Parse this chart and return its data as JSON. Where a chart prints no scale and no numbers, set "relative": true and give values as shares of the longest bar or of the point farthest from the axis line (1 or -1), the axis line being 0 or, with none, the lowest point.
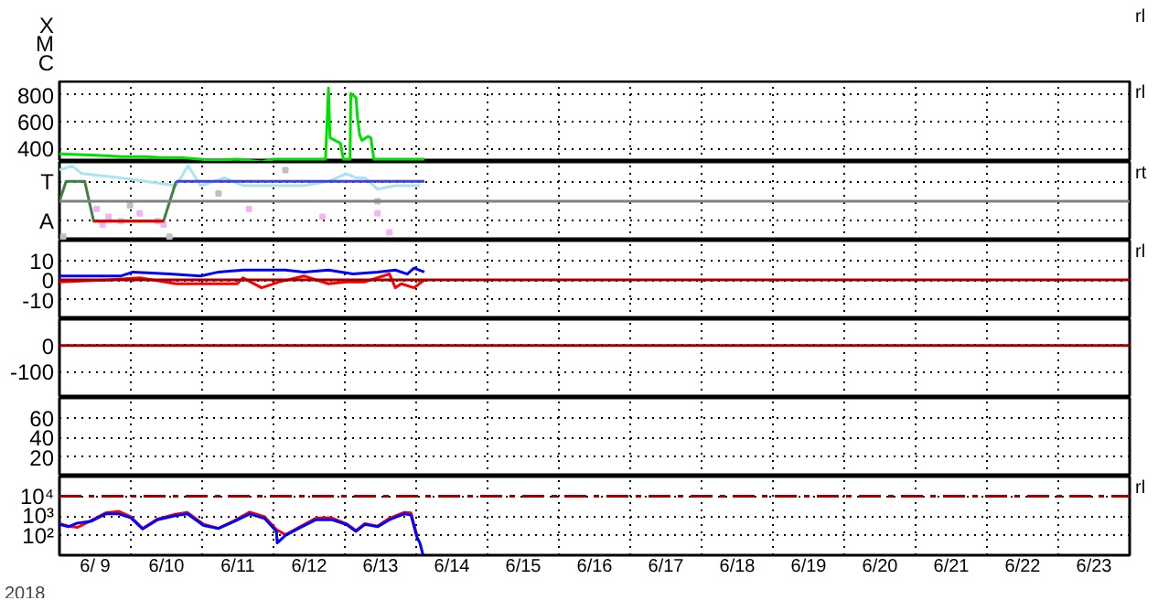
{
  "chart_data": [
    {
      "type": "other",
      "y_categories": [
        "X",
        "M",
        "C"
      ],
      "annotations": [
        "rl"
      ]
    },
    {
      "type": "line",
      "xlim": [
        "2018-06-09",
        "2018-06-24"
      ],
      "ylim": [
        300,
        900
      ],
      "yticks": [
        400,
        600,
        800
      ],
      "xticks": [
        {
          "value": "2018-06-10",
          "label": null
        },
        {
          "value": "2018-06-11",
          "label": null
        },
        {
          "value": "2018-06-12",
          "label": null
        },
        {
          "value": "2018-06-13",
          "label": null
        },
        {
          "value": "2018-06-14",
          "label": null
        },
        {
          "value": "2018-06-15",
          "label": null
        },
        {
          "value": "2018-06-16",
          "label": null
        },
        {
          "value": "2018-06-17",
          "label": null
        },
        {
          "value": "2018-06-18",
          "label": null
        },
        {
          "value": "2018-06-19",
          "label": null
        },
        {
          "value": "2018-06-20",
          "label": null
        },
        {
          "value": "2018-06-21",
          "label": null
        },
        {
          "value": "2018-06-22",
          "label": null
        },
        {
          "value": "2018-06-23",
          "label": null
        }
      ],
      "grid": true,
      "tick_labels": "y",
      "annotations": [
        "rl"
      ],
      "series": [
        {
          "color": "#00e000",
          "x": [
            "2018-06-09T00:00",
            "2018-06-09T12:30",
            "2018-06-09T20:45",
            "2018-06-10T05:00",
            "2018-06-10T11:00",
            "2018-06-10T17:15",
            "2018-06-10T23:30",
            "2018-06-11T02:30",
            "2018-06-11T11:45",
            "2018-06-11T20:00",
            "2018-06-12T00:00",
            "2018-06-12T14:15",
            "2018-06-12T17:30",
            "2018-06-12T18:30",
            "2018-06-12T19:00",
            "2018-06-12T22:30",
            "2018-06-12T23:30",
            "2018-06-13T01:45",
            "2018-06-13T02:00",
            "2018-06-13T03:45",
            "2018-06-13T04:15",
            "2018-06-13T05:00",
            "2018-06-13T05:45",
            "2018-06-13T07:45",
            "2018-06-13T08:45",
            "2018-06-13T09:45",
            "2018-06-14T02:45"
          ],
          "values": [
            360,
            350,
            340,
            340,
            330,
            330,
            320,
            310,
            320,
            300,
            320,
            320,
            320,
            850,
            480,
            440,
            320,
            320,
            810,
            780,
            630,
            500,
            460,
            490,
            480,
            320,
            320
          ]
        }
      ]
    },
    {
      "type": "line",
      "relative": true,
      "xlim": [
        "2018-06-09",
        "2018-06-24"
      ],
      "y_categories": [
        "T",
        "A"
      ],
      "xticks": [
        {
          "value": "2018-06-10",
          "label": null
        },
        {
          "value": "2018-06-11",
          "label": null
        },
        {
          "value": "2018-06-12",
          "label": null
        },
        {
          "value": "2018-06-13",
          "label": null
        },
        {
          "value": "2018-06-14",
          "label": null
        },
        {
          "value": "2018-06-15",
          "label": null
        },
        {
          "value": "2018-06-16",
          "label": null
        },
        {
          "value": "2018-06-17",
          "label": null
        },
        {
          "value": "2018-06-18",
          "label": null
        },
        {
          "value": "2018-06-19",
          "label": null
        },
        {
          "value": "2018-06-20",
          "label": null
        },
        {
          "value": "2018-06-21",
          "label": null
        },
        {
          "value": "2018-06-22",
          "label": null
        },
        {
          "value": "2018-06-23",
          "label": null
        }
      ],
      "grid": true,
      "tick_labels": "y",
      "annotations": [
        "rt"
      ],
      "ref_lines": [
        {
          "axis": "y",
          "value": 0.5,
          "color": "#808080"
        }
      ],
      "series": [
        {
          "color": "#a8e4f4",
          "x": [
            "2018-06-09T00:00",
            "2018-06-09T04:15",
            "2018-06-09T07:30",
            "2018-06-09T20:45",
            "2018-06-10T15:15",
            "2018-06-10T19:15",
            "2018-06-10T23:30",
            "2018-06-11T07:30",
            "2018-06-11T13:45",
            "2018-06-11T20:00",
            "2018-06-12T04:00",
            "2018-06-12T10:15",
            "2018-06-12T18:30",
            "2018-06-13T00:30",
            "2018-06-13T03:45",
            "2018-06-13T06:45",
            "2018-06-13T11:00",
            "2018-06-13T17:00",
            "2018-06-14T01:15"
          ],
          "values": [
            0.94,
            1,
            0.89,
            0.83,
            0.72,
            1,
            0.72,
            0.83,
            0.72,
            0.72,
            0.72,
            0.72,
            0.78,
            0.89,
            0.83,
            0.83,
            0.67,
            0.72,
            0.72
          ]
        },
        {
          "type": "scatter",
          "color": "#f4b4f4",
          "x": [
            "2018-06-09T12:30",
            "2018-06-09T14:30",
            "2018-06-09T16:30",
            "2018-06-09T20:45",
            "2018-06-10T03:00",
            "2018-06-10T09:00",
            "2018-06-10T11:00",
            "2018-06-11T15:45",
            "2018-06-12T16:30",
            "2018-06-13T11:00",
            "2018-06-13T15:00"
          ],
          "values": [
            0.39,
            0.17,
            0.28,
            0.22,
            0.33,
            0.22,
            0.17,
            0.39,
            0.28,
            0.33,
            0.06
          ]
        },
        {
          "type": "scatter",
          "color": "#c0c0c0",
          "x": [
            "2018-06-09T01:15",
            "2018-06-09T23:45",
            "2018-06-10T13:00",
            "2018-06-11T05:30",
            "2018-06-12T04:00",
            "2018-06-13T11:00"
          ],
          "values": [
            0,
            0.44,
            0,
            0.61,
            0.94,
            0.5
          ]
        },
        {
          "color": "#408040",
          "x": [
            "2018-06-09T00:00",
            "2018-06-09T02:15",
            "2018-06-09T08:30",
            "2018-06-09T11:30",
            "2018-06-10T11:00",
            "2018-06-10T15:15"
          ],
          "values": [
            0.5,
            0.78,
            0.78,
            0.22,
            0.22,
            0.78
          ]
        },
        {
          "color": "#e00000",
          "x": [
            "2018-06-09T11:30",
            "2018-06-10T11:00"
          ],
          "values": [
            0.22,
            0.22
          ]
        },
        {
          "color": "#4040e0",
          "x": [
            "2018-06-10T15:15",
            "2018-06-14T02:45"
          ],
          "values": [
            0.78,
            0.78
          ]
        }
      ]
    },
    {
      "type": "line",
      "xlim": [
        "2018-06-09",
        "2018-06-24"
      ],
      "ylim": [
        -20,
        20
      ],
      "yticks": [
        10,
        0,
        -10
      ],
      "xticks": [
        {
          "value": "2018-06-10",
          "label": null
        },
        {
          "value": "2018-06-11",
          "label": null
        },
        {
          "value": "2018-06-12",
          "label": null
        },
        {
          "value": "2018-06-13",
          "label": null
        },
        {
          "value": "2018-06-14",
          "label": null
        },
        {
          "value": "2018-06-15",
          "label": null
        },
        {
          "value": "2018-06-16",
          "label": null
        },
        {
          "value": "2018-06-17",
          "label": null
        },
        {
          "value": "2018-06-18",
          "label": null
        },
        {
          "value": "2018-06-19",
          "label": null
        },
        {
          "value": "2018-06-20",
          "label": null
        },
        {
          "value": "2018-06-21",
          "label": null
        },
        {
          "value": "2018-06-22",
          "label": null
        },
        {
          "value": "2018-06-23",
          "label": null
        }
      ],
      "grid": true,
      "tick_labels": "y",
      "annotations": [
        "rl"
      ],
      "ref_lines": [
        {
          "axis": "y",
          "value": 0,
          "color": "#a00000"
        }
      ],
      "series": [
        {
          "color": "#0000ff",
          "x": [
            "2018-06-09T00:00",
            "2018-06-09T20:45",
            "2018-06-10T00:45",
            "2018-06-10T13:00",
            "2018-06-10T23:30",
            "2018-06-11T05:30",
            "2018-06-11T13:45",
            "2018-06-11T22:00",
            "2018-06-12T04:00",
            "2018-06-12T10:15",
            "2018-06-12T18:30",
            "2018-06-13T02:45",
            "2018-06-13T11:00",
            "2018-06-13T17:00",
            "2018-06-13T21:00",
            "2018-06-13T23:15",
            "2018-06-14T02:45"
          ],
          "values": [
            2,
            2,
            4,
            3,
            2,
            4,
            5,
            5,
            5,
            4,
            5,
            3,
            4,
            5,
            3,
            6,
            4
          ]
        },
        {
          "color": "#ff0000",
          "x": [
            "2018-06-09T00:00",
            "2018-06-09T16:30",
            "2018-06-10T03:00",
            "2018-06-10T15:15",
            "2018-06-10T23:30",
            "2018-06-11T11:45",
            "2018-06-11T13:45",
            "2018-06-11T20:00",
            "2018-06-12T02:00",
            "2018-06-12T10:15",
            "2018-06-12T18:30",
            "2018-06-13T00:30",
            "2018-06-13T06:45",
            "2018-06-13T15:00",
            "2018-06-13T17:00",
            "2018-06-13T19:00",
            "2018-06-13T23:15",
            "2018-06-14T02:45"
          ],
          "values": [
            -1,
            0,
            1,
            -2,
            -2,
            -2,
            1,
            -4,
            -1,
            2,
            -2,
            -1,
            -1,
            3,
            -4,
            -2,
            -4,
            0
          ]
        }
      ]
    },
    {
      "type": "line",
      "xlim": [
        "2018-06-09",
        "2018-06-24"
      ],
      "ylim": [
        -200,
        100
      ],
      "yticks": [
        0,
        -100
      ],
      "xticks": [
        {
          "value": "2018-06-10",
          "label": null
        },
        {
          "value": "2018-06-11",
          "label": null
        },
        {
          "value": "2018-06-12",
          "label": null
        },
        {
          "value": "2018-06-13",
          "label": null
        },
        {
          "value": "2018-06-14",
          "label": null
        },
        {
          "value": "2018-06-15",
          "label": null
        },
        {
          "value": "2018-06-16",
          "label": null
        },
        {
          "value": "2018-06-17",
          "label": null
        },
        {
          "value": "2018-06-18",
          "label": null
        },
        {
          "value": "2018-06-19",
          "label": null
        },
        {
          "value": "2018-06-20",
          "label": null
        },
        {
          "value": "2018-06-21",
          "label": null
        },
        {
          "value": "2018-06-22",
          "label": null
        },
        {
          "value": "2018-06-23",
          "label": null
        }
      ],
      "grid": true,
      "tick_labels": "y",
      "ref_lines": [
        {
          "axis": "y",
          "value": 0,
          "color": "#a00000"
        }
      ]
    },
    {
      "type": "line",
      "xlim": [
        "2018-06-09",
        "2018-06-24"
      ],
      "ylim": [
        0,
        80
      ],
      "yticks": [
        60,
        40,
        20
      ],
      "xticks": [
        {
          "value": "2018-06-10",
          "label": null
        },
        {
          "value": "2018-06-11",
          "label": null
        },
        {
          "value": "2018-06-12",
          "label": null
        },
        {
          "value": "2018-06-13",
          "label": null
        },
        {
          "value": "2018-06-14",
          "label": null
        },
        {
          "value": "2018-06-15",
          "label": null
        },
        {
          "value": "2018-06-16",
          "label": null
        },
        {
          "value": "2018-06-17",
          "label": null
        },
        {
          "value": "2018-06-18",
          "label": null
        },
        {
          "value": "2018-06-19",
          "label": null
        },
        {
          "value": "2018-06-20",
          "label": null
        },
        {
          "value": "2018-06-21",
          "label": null
        },
        {
          "value": "2018-06-22",
          "label": null
        },
        {
          "value": "2018-06-23",
          "label": null
        }
      ],
      "grid": true,
      "tick_labels": "y"
    },
    {
      "type": "line",
      "log": true,
      "xlim": [
        "2018-06-09",
        "2018-06-24"
      ],
      "ylim": [
        10,
        100000
      ],
      "yticks": [
        {
          "value": 10000,
          "label": "10⁴"
        },
        {
          "value": 1000,
          "label": "10³"
        },
        {
          "value": 100,
          "label": "10²"
        }
      ],
      "xlabel": "2018",
      "xticks": [
        {
          "value": "2018-06-09T12:00",
          "label": "6/ 9"
        },
        {
          "value": "2018-06-10",
          "label": null
        },
        {
          "value": "2018-06-10T12:00",
          "label": "6/10"
        },
        {
          "value": "2018-06-11",
          "label": null
        },
        {
          "value": "2018-06-11T12:00",
          "label": "6/11"
        },
        {
          "value": "2018-06-12",
          "label": null
        },
        {
          "value": "2018-06-12T12:00",
          "label": "6/12"
        },
        {
          "value": "2018-06-13",
          "label": null
        },
        {
          "value": "2018-06-13T12:00",
          "label": "6/13"
        },
        {
          "value": "2018-06-14",
          "label": null
        },
        {
          "value": "2018-06-14T12:00",
          "label": "6/14"
        },
        {
          "value": "2018-06-15",
          "label": null
        },
        {
          "value": "2018-06-15T12:00",
          "label": "6/15"
        },
        {
          "value": "2018-06-16",
          "label": null
        },
        {
          "value": "2018-06-16T12:00",
          "label": "6/16"
        },
        {
          "value": "2018-06-17",
          "label": null
        },
        {
          "value": "2018-06-17T12:00",
          "label": "6/17"
        },
        {
          "value": "2018-06-18",
          "label": null
        },
        {
          "value": "2018-06-18T12:00",
          "label": "6/18"
        },
        {
          "value": "2018-06-19",
          "label": null
        },
        {
          "value": "2018-06-19T12:00",
          "label": "6/19"
        },
        {
          "value": "2018-06-20",
          "label": null
        },
        {
          "value": "2018-06-20T12:00",
          "label": "6/20"
        },
        {
          "value": "2018-06-21",
          "label": null
        },
        {
          "value": "2018-06-21T12:00",
          "label": "6/21"
        },
        {
          "value": "2018-06-22",
          "label": null
        },
        {
          "value": "2018-06-22T12:00",
          "label": "6/22"
        },
        {
          "value": "2018-06-23",
          "label": null
        },
        {
          "value": "2018-06-23T12:00",
          "label": "6/23"
        }
      ],
      "grid": true,
      "annotations": [
        "rl"
      ],
      "ref_lines": [
        {
          "axis": "y",
          "value": 10000,
          "color": "#a00000",
          "line_style": "dashed"
        }
      ],
      "series": [
        {
          "color": "#ff0000",
          "x": [
            "2018-06-09T00:00",
            "2018-06-09T03:00",
            "2018-06-09T06:00",
            "2018-06-09T10:30",
            "2018-06-09T15:30",
            "2018-06-09T20:00",
            "2018-06-10T00:00",
            "2018-06-10T04:00",
            "2018-06-10T09:00",
            "2018-06-10T15:00",
            "2018-06-10T19:00",
            "2018-06-11T00:30",
            "2018-06-11T05:30",
            "2018-06-11T10:45",
            "2018-06-11T16:00",
            "2018-06-11T21:00",
            "2018-06-12T01:00",
            "2018-06-12T04:00",
            "2018-06-12T09:15",
            "2018-06-12T14:15",
            "2018-06-12T19:30",
            "2018-06-13T00:30",
            "2018-06-13T03:45",
            "2018-06-13T06:45",
            "2018-06-13T11:00",
            "2018-06-13T15:00",
            "2018-06-13T20:00",
            "2018-06-13T22:15",
            "2018-06-14T00:15"
          ],
          "values": [
            400,
            300,
            260,
            560,
            1400,
            1700,
            900,
            230,
            700,
            1200,
            1500,
            370,
            230,
            560,
            1550,
            900,
            200,
            110,
            300,
            760,
            800,
            400,
            180,
            400,
            300,
            760,
            1500,
            1400,
            100
          ]
        },
        {
          "color": "#0000ff",
          "x": [
            "2018-06-09T00:00",
            "2018-06-09T03:00",
            "2018-06-09T06:00",
            "2018-06-09T10:30",
            "2018-06-09T15:30",
            "2018-06-09T20:00",
            "2018-06-10T00:00",
            "2018-06-10T04:00",
            "2018-06-10T09:00",
            "2018-06-10T15:00",
            "2018-06-10T19:00",
            "2018-06-11T00:30",
            "2018-06-11T05:30",
            "2018-06-11T10:45",
            "2018-06-11T16:00",
            "2018-06-11T21:00",
            "2018-06-12T01:00",
            "2018-06-12T01:15",
            "2018-06-12T04:00",
            "2018-06-12T09:15",
            "2018-06-12T14:15",
            "2018-06-12T19:30",
            "2018-06-13T00:30",
            "2018-06-13T03:45",
            "2018-06-13T06:45",
            "2018-06-13T11:00",
            "2018-06-13T15:00",
            "2018-06-13T20:00",
            "2018-06-13T22:15",
            "2018-06-14T00:15",
            "2018-06-14T01:15",
            "2018-06-14T02:15"
          ],
          "values": [
            370,
            280,
            430,
            520,
            1260,
            1260,
            790,
            215,
            640,
            1030,
            1260,
            325,
            230,
            520,
            1260,
            740,
            163,
            42,
            102,
            265,
            640,
            640,
            370,
            163,
            370,
            280,
            640,
            1260,
            1100,
            83,
            42,
            11
          ]
        }
      ]
    }
  ]
}
